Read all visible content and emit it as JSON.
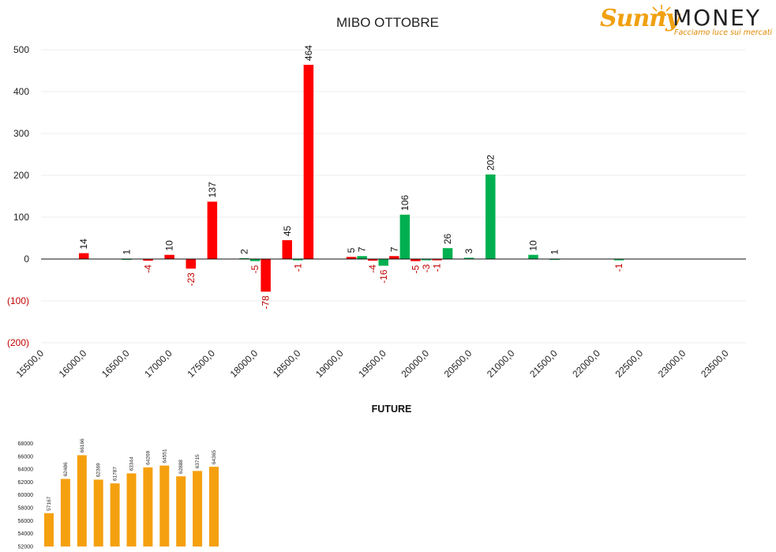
{
  "logo": {
    "brand_a": "Sunny",
    "brand_b": "MONEY",
    "tagline": "Facciamo luce sui mercati"
  },
  "colors": {
    "calls": "#ff0000",
    "puts": "#00b050",
    "future": "#f5a00f",
    "negative_label": "#c00000"
  },
  "chart_data": [
    {
      "type": "bar",
      "title": "MIBO OTTOBRE",
      "ylim": [
        -200,
        500
      ],
      "yticks": [
        "(200)",
        "(100)",
        "0",
        "100",
        "200",
        "300",
        "400",
        "500"
      ],
      "ytick_values": [
        -200,
        -100,
        0,
        100,
        200,
        300,
        400,
        500
      ],
      "categories": [
        "15500,0",
        "16000,0",
        "16500,0",
        "17000,0",
        "17500,0",
        "18000,0",
        "18500,0",
        "19000,0",
        "19500,0",
        "20000,0",
        "20500,0",
        "21000,0",
        "21500,0",
        "22000,0",
        "22500,0",
        "23000,0",
        "23500,0"
      ],
      "grid": true,
      "series": [
        {
          "color": "red",
          "points": [
            {
              "x": 16000,
              "y": 14
            },
            {
              "x": 16750,
              "y": -4
            },
            {
              "x": 17000,
              "y": 10
            },
            {
              "x": 17250,
              "y": -23
            },
            {
              "x": 17500,
              "y": 137
            },
            {
              "x": 18125,
              "y": -78
            },
            {
              "x": 18375,
              "y": 45
            },
            {
              "x": 18625,
              "y": 464
            },
            {
              "x": 19125,
              "y": 5
            },
            {
              "x": 19375,
              "y": -4
            },
            {
              "x": 19625,
              "y": 7
            },
            {
              "x": 19875,
              "y": -5
            },
            {
              "x": 20125,
              "y": -1
            }
          ]
        },
        {
          "color": "green",
          "points": [
            {
              "x": 16500,
              "y": 1
            },
            {
              "x": 17875,
              "y": 2
            },
            {
              "x": 18000,
              "y": -5
            },
            {
              "x": 18500,
              "y": -1
            },
            {
              "x": 19250,
              "y": 7
            },
            {
              "x": 19500,
              "y": -16
            },
            {
              "x": 19750,
              "y": 106
            },
            {
              "x": 20000,
              "y": -3
            },
            {
              "x": 20250,
              "y": 26
            },
            {
              "x": 20500,
              "y": 3
            },
            {
              "x": 20750,
              "y": 202
            },
            {
              "x": 21250,
              "y": 10
            },
            {
              "x": 21500,
              "y": 1
            },
            {
              "x": 22250,
              "y": -1
            }
          ]
        }
      ]
    },
    {
      "type": "bar",
      "title": "FUTURE",
      "ylim": [
        52000,
        68000
      ],
      "yticks": [
        "52000",
        "54000",
        "56000",
        "58000",
        "60000",
        "62000",
        "64000",
        "66000",
        "68000"
      ],
      "values": [
        57167,
        62486,
        66166,
        62369,
        61787,
        63344,
        64269,
        64551,
        62888,
        63715,
        64365
      ]
    }
  ]
}
